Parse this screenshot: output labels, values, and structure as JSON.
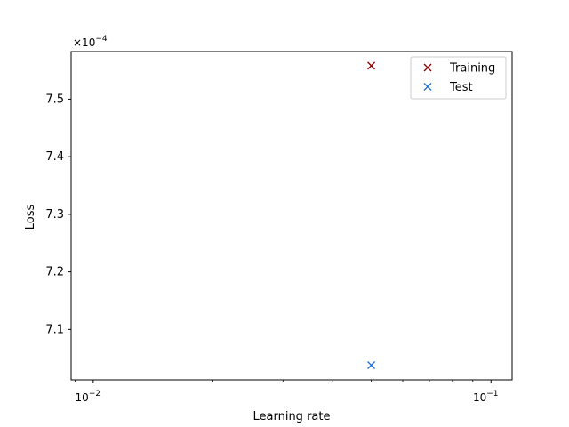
{
  "chart_data": {
    "type": "scatter",
    "title": "",
    "xlabel": "Learning rate",
    "ylabel": "Loss",
    "x_scale": "log",
    "xlim": [
      0.0088,
      0.113
    ],
    "ylim": [
      0.00070125,
      0.00075825
    ],
    "y_offset_label": {
      "base": "×10",
      "exp": "−4"
    },
    "x_ticks": [
      {
        "value": 0.01,
        "base": "10",
        "exp": "−2"
      },
      {
        "value": 0.1,
        "base": "10",
        "exp": "−1"
      }
    ],
    "y_ticks": [
      {
        "value": 0.00071,
        "label": "7.1"
      },
      {
        "value": 0.00072,
        "label": "7.2"
      },
      {
        "value": 0.00073,
        "label": "7.3"
      },
      {
        "value": 0.00074,
        "label": "7.4"
      },
      {
        "value": 0.00075,
        "label": "7.5"
      }
    ],
    "grid": false,
    "legend_position": "top-right",
    "series": [
      {
        "name": "Training",
        "color": "#8b0000",
        "marker": "x",
        "points": [
          {
            "x": 0.05,
            "y": 0.0007558
          }
        ]
      },
      {
        "name": "Test",
        "color": "#1f6fd6",
        "marker": "x",
        "points": [
          {
            "x": 0.05,
            "y": 0.0007038
          }
        ]
      }
    ]
  }
}
